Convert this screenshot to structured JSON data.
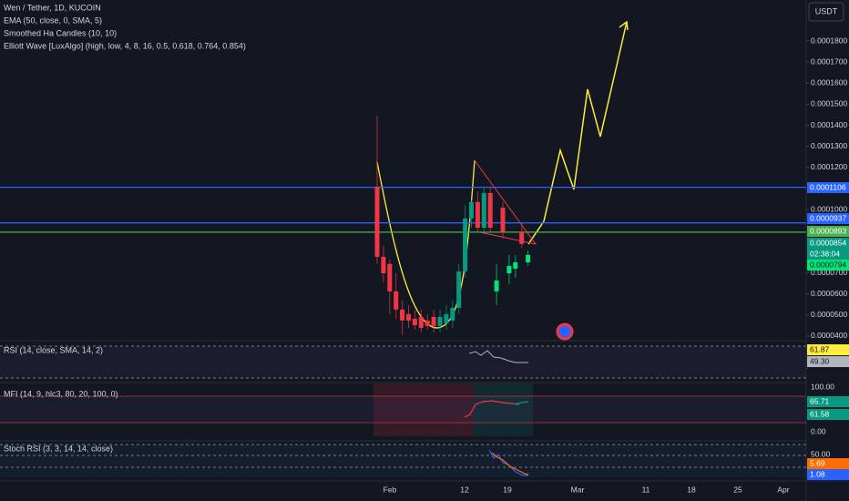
{
  "header": {
    "symbol": "Wen / Tether, 1D, KUCOIN",
    "indicators": [
      "EMA (50, close, 0, SMA, 5)",
      "Smoothed Ha Candles (10, 10)",
      "Elliott Wave [LuxAlgo] (high, low, 4, 8, 16, 0.5, 0.618, 0.764, 0.854)"
    ]
  },
  "currency_button": "USDT",
  "price_axis": {
    "ticks": [
      {
        "value": 0.00018,
        "label": "0.0001800"
      },
      {
        "value": 0.00017,
        "label": "0.0001700"
      },
      {
        "value": 0.00016,
        "label": "0.0001600"
      },
      {
        "value": 0.00015,
        "label": "0.0001500"
      },
      {
        "value": 0.00014,
        "label": "0.0001400"
      },
      {
        "value": 0.00013,
        "label": "0.0001300"
      },
      {
        "value": 0.00012,
        "label": "0.0001200"
      },
      {
        "value": 0.0001,
        "label": "0.0001000"
      },
      {
        "value": 7e-05,
        "label": "0.0000700"
      },
      {
        "value": 6e-05,
        "label": "0.0000600"
      },
      {
        "value": 5e-05,
        "label": "0.0000500"
      },
      {
        "value": 4e-05,
        "label": "0.0000400"
      }
    ]
  },
  "candles": [
    {
      "open": 0.0001109,
      "high": 0.0001446,
      "low": 7.42e-05,
      "close": 7.76e-05
    },
    {
      "open": 7.76e-05,
      "high": 8.28e-05,
      "low": 6.55e-05,
      "close": 6.98e-05
    },
    {
      "open": 7.42e-05,
      "high": 7.63e-05,
      "low": 5.04e-05,
      "close": 6.12e-05
    },
    {
      "open": 6.12e-05,
      "high": 6.98e-05,
      "low": 4.82e-05,
      "close": 5.26e-05
    },
    {
      "open": 5.26e-05,
      "high": 5.69e-05,
      "low": 4.05e-05,
      "close": 4.74e-05
    },
    {
      "open": 5.04e-05,
      "high": 5.47e-05,
      "low": 4.39e-05,
      "close": 4.74e-05
    },
    {
      "open": 4.82e-05,
      "high": 5.26e-05,
      "low": 4.3e-05,
      "close": 4.52e-05
    },
    {
      "open": 4.91e-05,
      "high": 5.26e-05,
      "low": 4.18e-05,
      "close": 4.39e-05
    },
    {
      "open": 4.74e-05,
      "high": 5.04e-05,
      "low": 4.3e-05,
      "close": 4.48e-05
    },
    {
      "open": 4.91e-05,
      "high": 5.26e-05,
      "low": 4.18e-05,
      "close": 4.48e-05
    },
    {
      "open": 4.48e-05,
      "high": 5.26e-05,
      "low": 4.18e-05,
      "close": 4.91e-05
    },
    {
      "open": 4.61e-05,
      "high": 5.47e-05,
      "low": 4.3e-05,
      "close": 5.04e-05
    },
    {
      "open": 4.74e-05,
      "high": 5.69e-05,
      "low": 4.39e-05,
      "close": 5.34e-05
    },
    {
      "open": 5.34e-05,
      "high": 7.42e-05,
      "low": 5.04e-05,
      "close": 7.07e-05
    },
    {
      "open": 7.07e-05,
      "high": 0.0001022,
      "low": 6.77e-05,
      "close": 9.58e-05
    },
    {
      "open": 9.58e-05,
      "high": 0.0001044,
      "low": 9.14e-05,
      "close": 0.0001036
    },
    {
      "open": 0.0001036,
      "high": 0.0001087,
      "low": 8.93e-05,
      "close": 9.14e-05
    },
    {
      "open": 9.14e-05,
      "high": 0.0001109,
      "low": 8.93e-05,
      "close": 0.0001079
    },
    {
      "open": 0.0001079,
      "high": 0.0001109,
      "low": 8.93e-05,
      "close": 9.14e-05
    },
    {
      "open": 6.12e-05,
      "high": 7.42e-05,
      "low": 5.47e-05,
      "close": 6.64e-05
    },
    {
      "open": 0.0001009,
      "high": 0.0001036,
      "low": 8.62e-05,
      "close": 8.93e-05
    },
    {
      "open": 6.98e-05,
      "high": 7.85e-05,
      "low": 6.47e-05,
      "close": 7.33e-05
    },
    {
      "open": 7.2e-05,
      "high": 7.85e-05,
      "low": 6.77e-05,
      "close": 7.5e-05
    },
    {
      "open": 8.93e-05,
      "high": 9.36e-05,
      "low": 8.19e-05,
      "close": 8.37e-05
    },
    {
      "open": 7.5e-05,
      "high": 8.06e-05,
      "low": 7.33e-05,
      "close": 7.85e-05
    }
  ],
  "horizontal_lines": [
    {
      "value": 0.0001106,
      "label": "0.0001106",
      "color": "#2962ff"
    },
    {
      "value": 9.37e-05,
      "label": "0.0000937",
      "color": "#2962ff"
    },
    {
      "value": 8.93e-05,
      "label": "0.0000893",
      "color": "#4caf50"
    }
  ],
  "last_price": {
    "value": 8.54e-05,
    "label": "0.0000854",
    "countdown": "02:38:04"
  },
  "ha_price": {
    "value": 7.94e-05,
    "label": "0.0000794"
  },
  "rsi": {
    "title": "RSI (14, close, SMA, 14, 2)",
    "values": [
      61.87,
      {
        "value": 49.3,
        "label": "49.30"
      }
    ]
  },
  "mfi": {
    "title": "MFI (14, 9, hlc3, 80, 20, 100, 0)",
    "ticks": [
      {
        "value": 100,
        "label": "100.00"
      },
      {
        "value": 0,
        "label": "0.00"
      }
    ],
    "values": [
      65.71,
      61.58
    ]
  },
  "stoch_rsi": {
    "title": "Stoch RSI (3, 3, 14, 14, close)",
    "ticks": [
      {
        "value": 50,
        "label": "50.00"
      }
    ],
    "values": [
      5.69,
      1.08
    ]
  },
  "time_axis": [
    "Feb",
    "12",
    "19",
    "Mar",
    "11",
    "18",
    "25",
    "Apr"
  ]
}
